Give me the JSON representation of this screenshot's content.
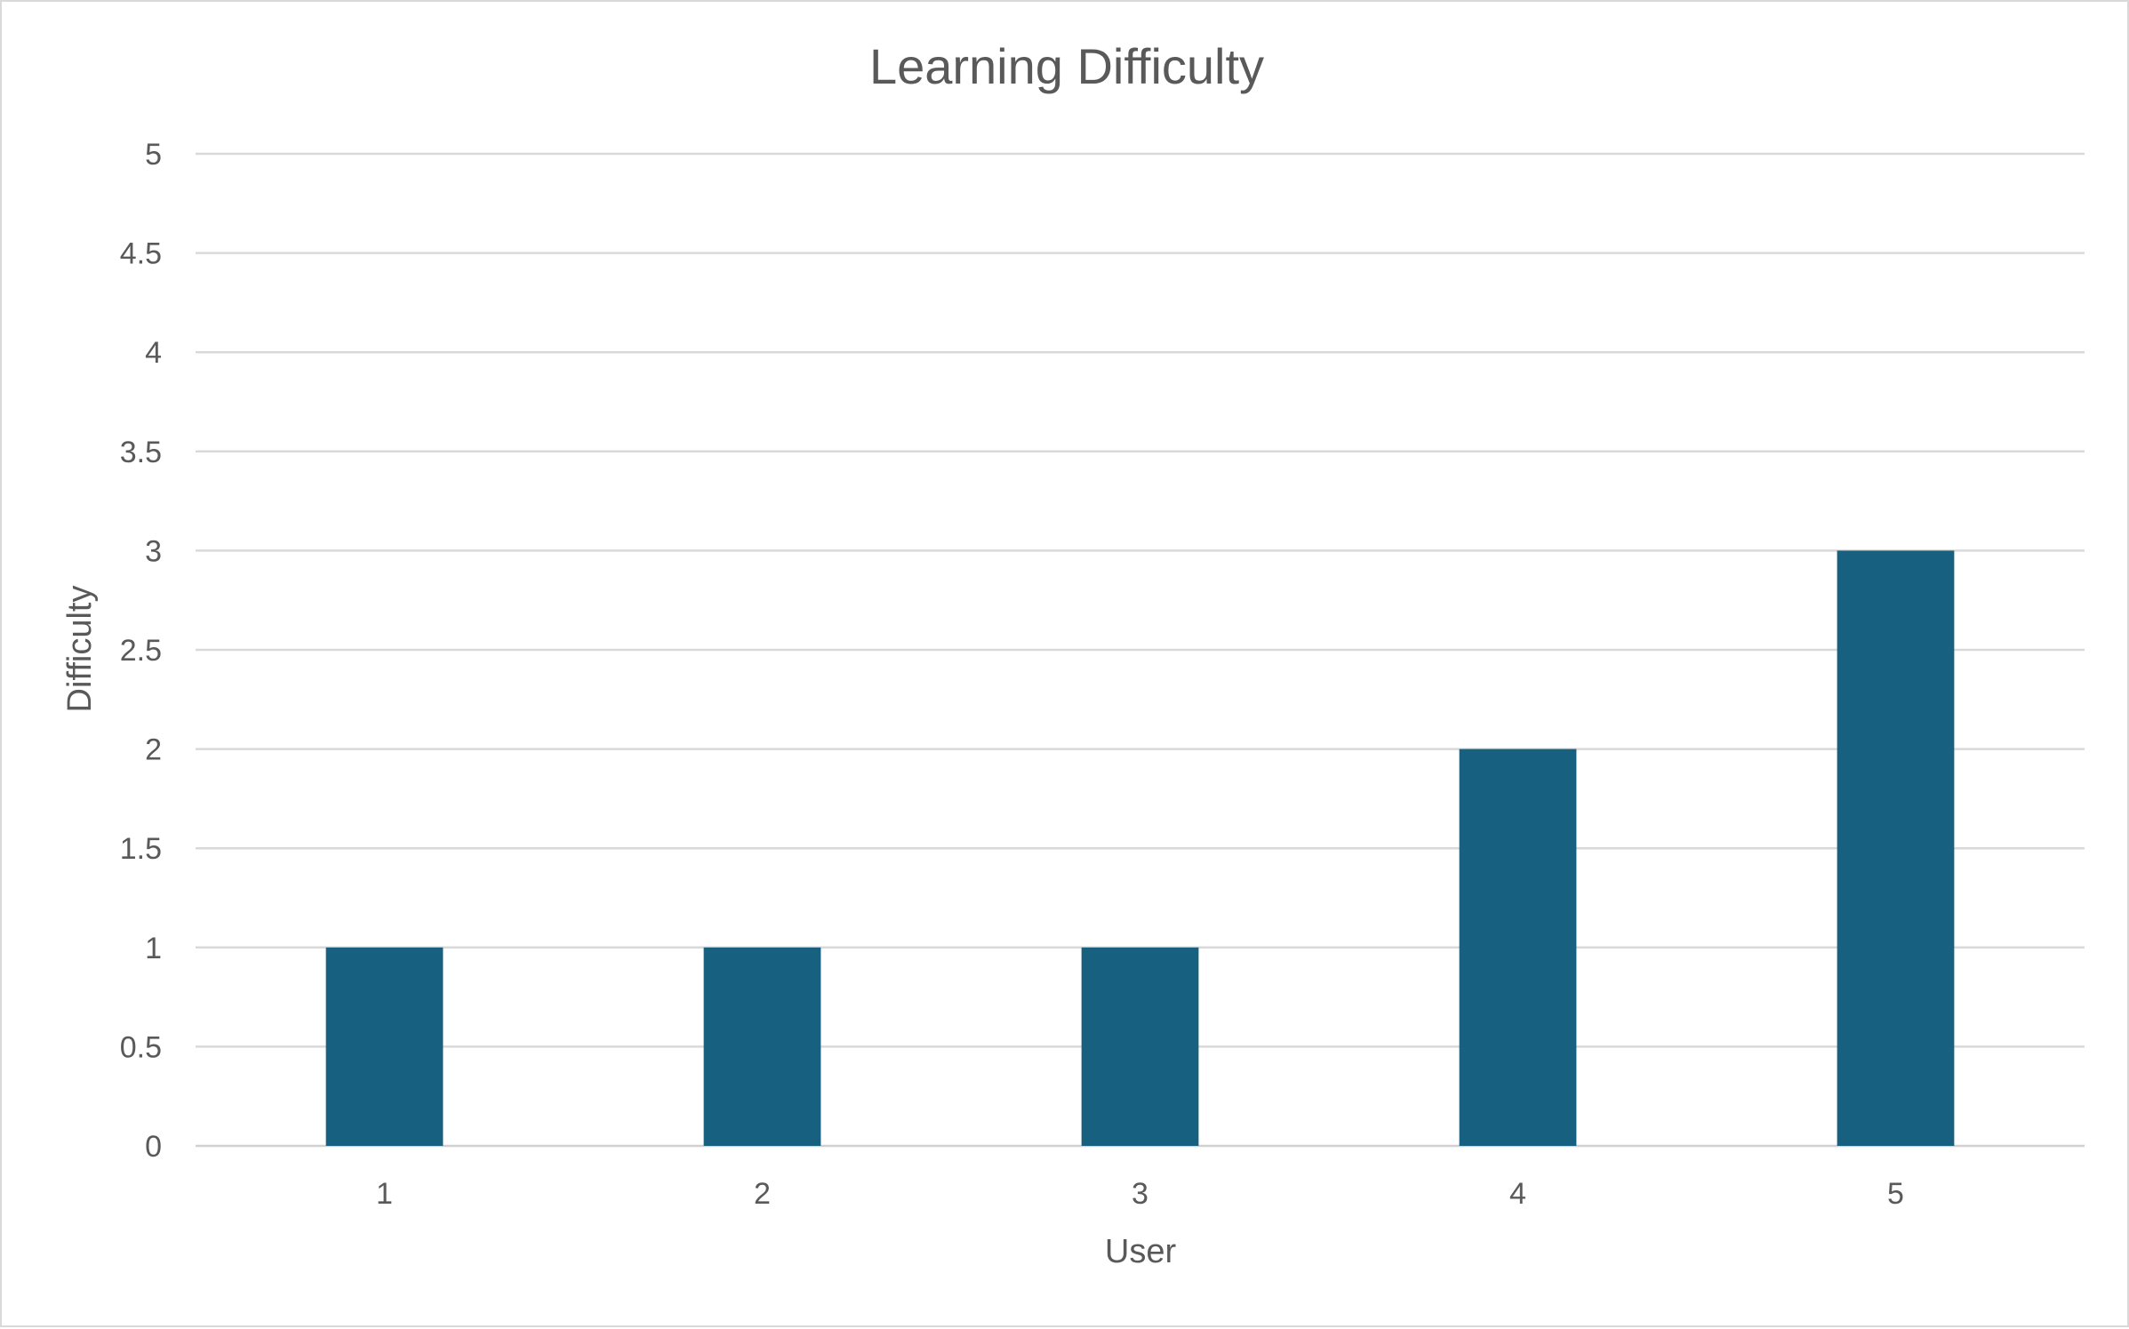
{
  "chart_data": {
    "type": "bar",
    "title": "Learning Difficulty",
    "xlabel": "User",
    "ylabel": "Difficulty",
    "categories": [
      "1",
      "2",
      "3",
      "4",
      "5"
    ],
    "values": [
      1,
      1,
      1,
      2,
      3
    ],
    "ylim": [
      0,
      5
    ],
    "yticks": [
      "0",
      "0.5",
      "1",
      "1.5",
      "2",
      "2.5",
      "3",
      "3.5",
      "4",
      "4.5",
      "5"
    ],
    "grid": true,
    "legend": "none",
    "bar_color": "#17607f"
  }
}
